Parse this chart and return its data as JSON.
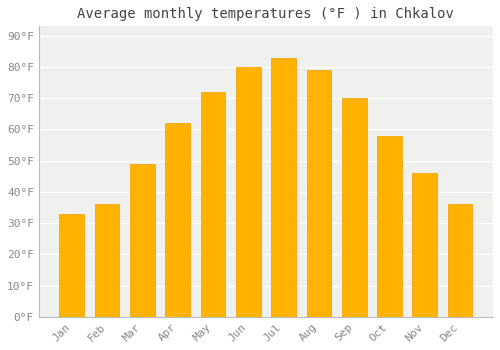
{
  "title": "Average monthly temperatures (°F ) in Chkalov",
  "months": [
    "Jan",
    "Feb",
    "Mar",
    "Apr",
    "May",
    "Jun",
    "Jul",
    "Aug",
    "Sep",
    "Oct",
    "Nov",
    "Dec"
  ],
  "values": [
    33,
    36,
    49,
    62,
    72,
    80,
    83,
    79,
    70,
    58,
    46,
    36
  ],
  "bar_color": "#FFB300",
  "bar_edge_color": "#F0A000",
  "ylim": [
    0,
    93
  ],
  "yticks": [
    0,
    10,
    20,
    30,
    40,
    50,
    60,
    70,
    80,
    90
  ],
  "ytick_labels": [
    "0°F",
    "10°F",
    "20°F",
    "30°F",
    "40°F",
    "50°F",
    "60°F",
    "70°F",
    "80°F",
    "90°F"
  ],
  "title_fontsize": 10,
  "tick_fontsize": 8,
  "background_color": "#ffffff",
  "plot_bg_color": "#f0f0ee",
  "grid_color": "#ffffff",
  "bar_width": 0.7,
  "tick_color": "#888888"
}
